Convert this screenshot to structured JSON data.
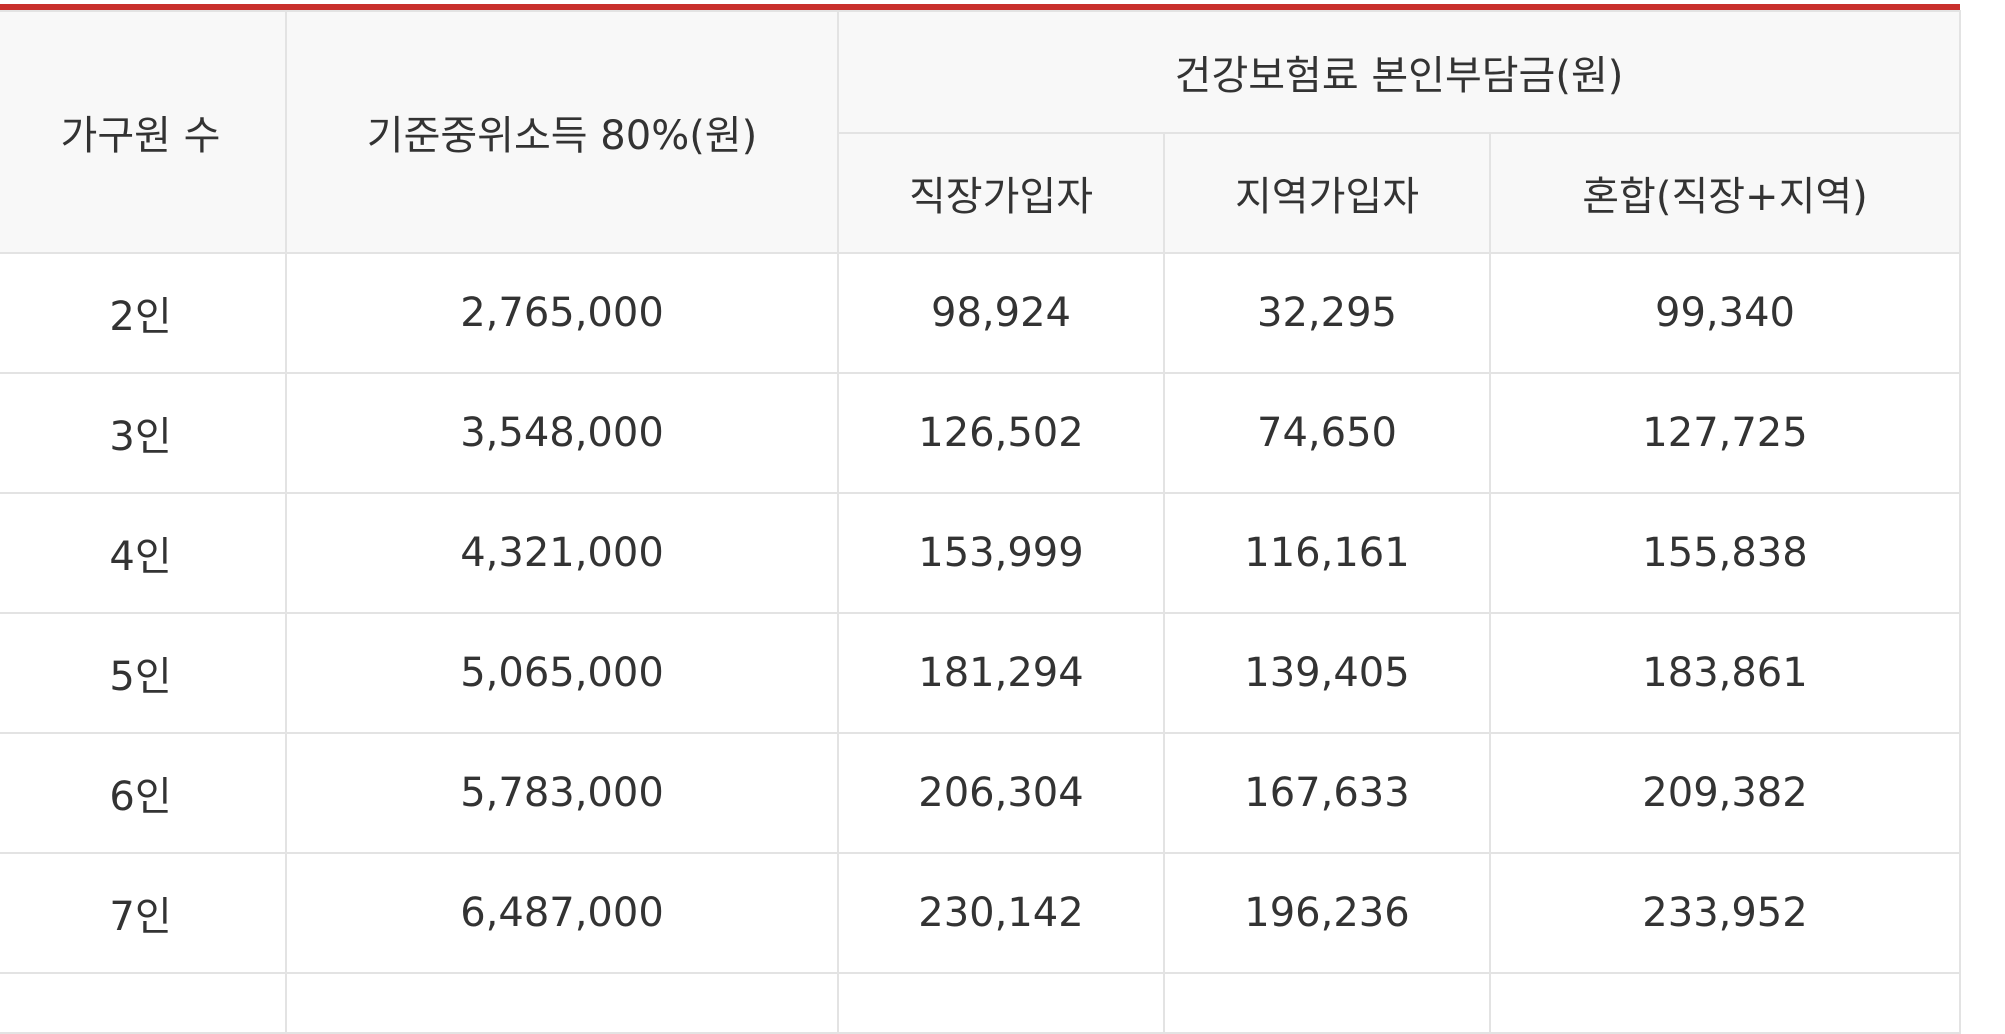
{
  "table": {
    "headers": {
      "household": "가구원 수",
      "median_income": "기준중위소득 80%(원)",
      "premium_group": "건강보험료 본인부담금(원)",
      "employee": "직장가입자",
      "regional": "지역가입자",
      "mixed": "혼합(직장+지역)"
    },
    "rows": [
      {
        "household": "2인",
        "median_income": "2,765,000",
        "employee": "98,924",
        "regional": "32,295",
        "mixed": "99,340"
      },
      {
        "household": "3인",
        "median_income": "3,548,000",
        "employee": "126,502",
        "regional": "74,650",
        "mixed": "127,725"
      },
      {
        "household": "4인",
        "median_income": "4,321,000",
        "employee": "153,999",
        "regional": "116,161",
        "mixed": "155,838"
      },
      {
        "household": "5인",
        "median_income": "5,065,000",
        "employee": "181,294",
        "regional": "139,405",
        "mixed": "183,861"
      },
      {
        "household": "6인",
        "median_income": "5,783,000",
        "employee": "206,304",
        "regional": "167,633",
        "mixed": "209,382"
      },
      {
        "household": "7인",
        "median_income": "6,487,000",
        "employee": "230,142",
        "regional": "196,236",
        "mixed": "233,952"
      }
    ]
  },
  "colors": {
    "accent": "#c9302c",
    "header_bg": "#f8f8f8",
    "border": "#e3e3e3",
    "text": "#333333"
  }
}
